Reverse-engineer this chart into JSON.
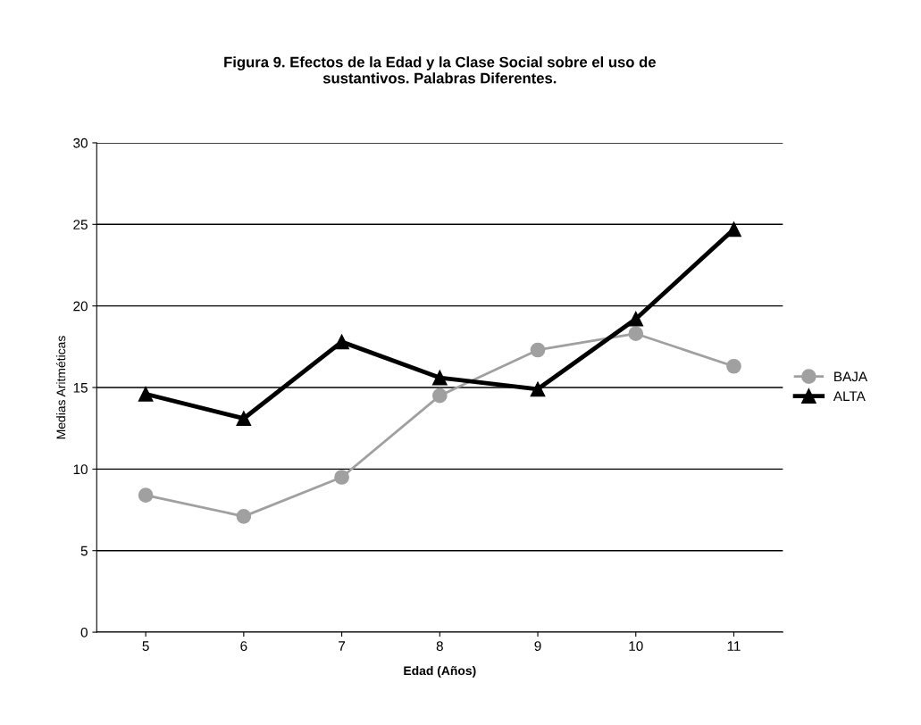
{
  "chart_data": {
    "type": "line",
    "title": "Figura 9. Efectos de la Edad y la Clase Social sobre el uso de\nsustantivos. Palabras Diferentes.",
    "xlabel": "Edad (Años)",
    "ylabel": "Medias Aritméticas",
    "categories": [
      "5",
      "6",
      "7",
      "8",
      "9",
      "10",
      "11"
    ],
    "series": [
      {
        "name": "BAJA",
        "color": "#a0a0a0",
        "marker": "circle",
        "values": [
          8.4,
          7.1,
          9.5,
          14.5,
          17.3,
          18.3,
          16.3
        ]
      },
      {
        "name": "ALTA",
        "color": "#000000",
        "marker": "triangle",
        "values": [
          14.6,
          13.1,
          17.8,
          15.6,
          14.9,
          19.2,
          24.7
        ]
      }
    ],
    "ylim": [
      0,
      30
    ],
    "yticks": [
      0,
      5,
      10,
      15,
      20,
      25,
      30
    ],
    "grid": "y",
    "legend": "right"
  }
}
